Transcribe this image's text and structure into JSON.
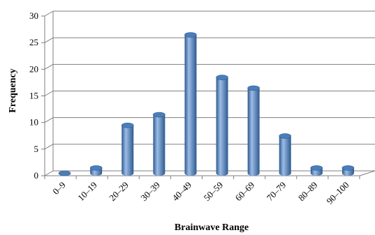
{
  "chart_data": {
    "type": "bar",
    "style": "3d-cylinder",
    "categories": [
      "0–9",
      "10–19",
      "20–29",
      "30–39",
      "40–49",
      "50–59",
      "60–69",
      "70–79",
      "80–89",
      "90–100"
    ],
    "values": [
      0,
      1,
      9,
      11,
      26,
      18,
      16,
      7,
      1,
      1
    ],
    "title": "",
    "xlabel": "Brainwave Range",
    "ylabel": "Frequency",
    "ylim": [
      0,
      30
    ],
    "yticks": [
      0,
      5,
      10,
      15,
      20,
      25,
      30
    ],
    "grid": true,
    "legend": "none",
    "bar_color": "#4a7ebb",
    "bar_edge_color": "#2e5a8f",
    "bar_highlight_color": "#9cbce6",
    "grid_color": "#7f7f7f"
  }
}
